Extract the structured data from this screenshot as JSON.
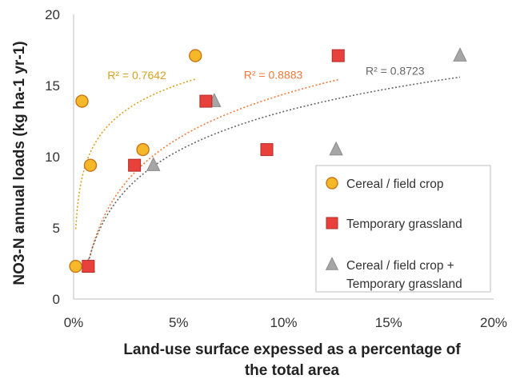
{
  "chart_data": {
    "type": "scatter",
    "xlabel_lines": [
      "Land-use surface expessed as a percentage of",
      "the total area"
    ],
    "ylabel": "NO3-N annual loads (kg ha-1 yr-1)",
    "xlim": [
      0,
      20
    ],
    "ylim": [
      0,
      20
    ],
    "x_ticks": [
      "0%",
      "5%",
      "10%",
      "15%",
      "20%"
    ],
    "y_ticks": [
      "0",
      "5",
      "10",
      "15",
      "20"
    ],
    "grid": false,
    "legend_position": "right",
    "series": [
      {
        "name": "Cereal / field crop",
        "marker": "circle",
        "fill": "#F5B829",
        "stroke": "#C9761A",
        "trend_color": "#D9A21E",
        "r2_label": "R² = 0.7642",
        "points": [
          [
            0.1,
            2.3
          ],
          [
            0.8,
            9.4
          ],
          [
            0.4,
            13.9
          ],
          [
            3.3,
            10.5
          ],
          [
            5.8,
            17.1
          ]
        ]
      },
      {
        "name": "Temporary grassland",
        "marker": "square",
        "fill": "#E8413C",
        "stroke": "#B52A26",
        "trend_color": "#F07A3A",
        "r2_label": "R² = 0.8883",
        "points": [
          [
            0.7,
            2.3
          ],
          [
            2.9,
            9.4
          ],
          [
            6.3,
            13.9
          ],
          [
            9.2,
            10.5
          ],
          [
            12.6,
            17.1
          ]
        ]
      },
      {
        "name": "Cereal / field crop + Temporary grassland",
        "legend_lines": [
          "Cereal / field crop +",
          "Temporary grassland"
        ],
        "marker": "triangle",
        "fill": "#A6A6A6",
        "stroke": "#8C8C8C",
        "trend_color": "#666666",
        "r2_label": "R² = 0.8723",
        "points": [
          [
            0.7,
            2.3
          ],
          [
            3.8,
            9.4
          ],
          [
            6.7,
            13.9
          ],
          [
            12.5,
            10.5
          ],
          [
            18.4,
            17.1
          ]
        ]
      }
    ]
  }
}
